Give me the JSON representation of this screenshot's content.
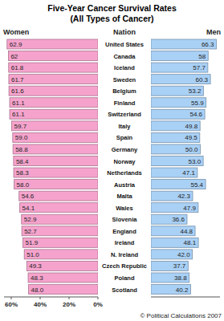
{
  "chart_data": [
    {
      "type": "bar",
      "orientation": "horizontal",
      "title": "Five-Year Cancer Survival Rates",
      "subtitle": "(All Types of Cancer)",
      "annotations": [
        "Nation",
        "© Political Calculations 2007"
      ],
      "categories": [
        "United States",
        "Canada",
        "Iceland",
        "Sweden",
        "Belgium",
        "Finland",
        "Switzerland",
        "Italy",
        "Spain",
        "Germany",
        "Norway",
        "Netherlands",
        "Austria",
        "Malta",
        "Wales",
        "Slovenia",
        "England",
        "Ireland",
        "N. Ireland",
        "Czech Republic",
        "Poland",
        "Scotland"
      ],
      "series": [
        {
          "name": "Women",
          "color": "#f5a3cc",
          "values": [
            62.9,
            62,
            61.8,
            61.7,
            61.6,
            61.1,
            61.1,
            59.7,
            59.0,
            58.8,
            58.4,
            58.3,
            58.0,
            54.6,
            54.1,
            52.9,
            52.7,
            51.9,
            51.0,
            49.3,
            48.3,
            48.0
          ],
          "value_labels": [
            "62.9",
            "62",
            "61.8",
            "61.7",
            "61.6",
            "61.1",
            "61.1",
            "59.7",
            "59.0",
            "58.8",
            "58.4",
            "58.3",
            "58.0",
            "54.6",
            "54.1",
            "52.9",
            "52.7",
            "51.9",
            "51.0",
            "49.3",
            "48.3",
            "48.0"
          ]
        }
      ],
      "xlim": [
        0,
        65
      ],
      "xticks": [
        {
          "value": 60,
          "label": "60%"
        },
        {
          "value": 40,
          "label": "40%"
        },
        {
          "value": 20,
          "label": "20%"
        },
        {
          "value": 0,
          "label": "0%"
        }
      ],
      "data_labels": true,
      "tick_labels": "x"
    },
    {
      "type": "bar",
      "orientation": "horizontal",
      "series": [
        {
          "name": "Men",
          "color": "#a9d0f5",
          "values": [
            66.3,
            58,
            57.7,
            60.3,
            53.2,
            55.9,
            54.6,
            49.8,
            49.5,
            50.0,
            53.0,
            47.1,
            55.4,
            42.3,
            47.9,
            36.6,
            44.8,
            48.1,
            42.0,
            37.7,
            38.8,
            40.2
          ],
          "value_labels": [
            "66.3",
            "58",
            "57.7",
            "60.3",
            "53.2",
            "55.9",
            "54.6",
            "49.8",
            "49.5",
            "50.0",
            "53.0",
            "47.1",
            "55.4",
            "42.3",
            "47.9",
            "36.6",
            "44.8",
            "48.1",
            "42.0",
            "37.7",
            "38.8",
            "40.2"
          ]
        }
      ],
      "xlim": [
        0,
        70
      ],
      "data_labels": true,
      "tick_labels": false
    }
  ]
}
